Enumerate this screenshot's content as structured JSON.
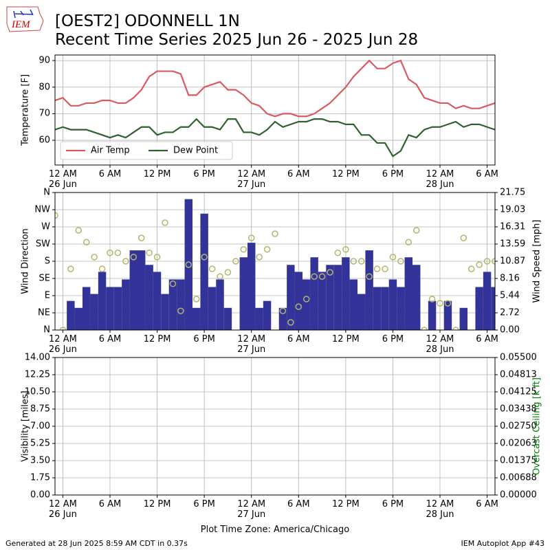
{
  "title": "[OEST2] ODONNELL 1N",
  "subtitle": "Recent Time Series 2025 Jun 26 - 2025 Jun 28",
  "logo": "IEM",
  "xlabel": "Plot Time Zone: America/Chicago",
  "footer_left": "Generated at 28 Jun 2025 8:59 AM CDT in 0.37s",
  "footer_right": "IEM Autoplot App #43",
  "chart_data": [
    {
      "type": "line",
      "ylabel": "Temperature [F]",
      "x": [
        -1,
        0,
        1,
        2,
        3,
        4,
        5,
        6,
        7,
        8,
        9,
        10,
        11,
        12,
        13,
        14,
        15,
        16,
        17,
        18,
        19,
        20,
        21,
        22,
        23,
        24,
        25,
        26,
        27,
        28,
        29,
        30,
        31,
        32,
        33,
        34,
        35,
        36,
        37,
        38,
        39,
        40,
        41,
        42,
        43,
        44,
        45,
        46,
        47,
        48,
        49,
        50,
        51,
        52,
        53,
        54,
        55
      ],
      "xlim": [
        -1,
        55
      ],
      "xticks": [
        {
          "value": 0,
          "label": "12 AM\n26 Jun"
        },
        {
          "value": 6,
          "label": "6 AM"
        },
        {
          "value": 12,
          "label": "12 PM"
        },
        {
          "value": 18,
          "label": "6 PM"
        },
        {
          "value": 24,
          "label": "12 AM\n27 Jun"
        },
        {
          "value": 30,
          "label": "6 AM"
        },
        {
          "value": 36,
          "label": "12 PM"
        },
        {
          "value": 42,
          "label": "6 PM"
        },
        {
          "value": 48,
          "label": "12 AM\n28 Jun"
        },
        {
          "value": 54,
          "label": "6 AM"
        }
      ],
      "ylim": [
        50.7,
        92.1
      ],
      "yticks": [
        60,
        70,
        80,
        90
      ],
      "grid": true,
      "legend": "lower left",
      "series": [
        {
          "name": "Air Temp",
          "color": "#d9595f",
          "values": [
            75,
            76,
            73,
            73,
            74,
            74,
            75,
            75,
            74,
            74,
            76,
            79,
            84,
            86,
            86,
            86,
            85,
            77,
            77,
            80,
            81,
            82,
            79,
            79,
            77,
            74,
            73,
            70,
            69,
            70,
            70,
            69,
            69,
            70,
            72,
            74,
            77,
            80,
            84,
            87,
            90,
            87,
            87,
            89,
            90,
            83,
            81,
            76,
            75,
            74,
            74,
            72,
            73,
            72,
            72,
            73,
            74
          ]
        },
        {
          "name": "Dew Point",
          "color": "#2f5f2f",
          "values": [
            64,
            65,
            64,
            64,
            64,
            63,
            62,
            61,
            62,
            61,
            63,
            65,
            65,
            62,
            63,
            63,
            65,
            65,
            68,
            65,
            65,
            64,
            68,
            68,
            63,
            63,
            62,
            64,
            67,
            65,
            66,
            67,
            67,
            68,
            68,
            67,
            67,
            66,
            66,
            62,
            62,
            59,
            59,
            54,
            56,
            62,
            61,
            64,
            65,
            65,
            66,
            67,
            65,
            66,
            66,
            65,
            64
          ]
        }
      ]
    },
    {
      "type": "combo",
      "ylabel": "Wind Direction",
      "y2label": "Wind Speed [mph]",
      "x": [
        -1,
        0,
        1,
        2,
        3,
        4,
        5,
        6,
        7,
        8,
        9,
        10,
        11,
        12,
        13,
        14,
        15,
        16,
        17,
        18,
        19,
        20,
        21,
        22,
        23,
        24,
        25,
        26,
        27,
        28,
        29,
        30,
        31,
        32,
        33,
        34,
        35,
        36,
        37,
        38,
        39,
        40,
        41,
        42,
        43,
        44,
        45,
        46,
        47,
        48,
        49,
        50,
        51,
        52,
        53,
        54,
        55
      ],
      "xlim": [
        -1,
        55
      ],
      "xticks": [
        {
          "value": 0,
          "label": "12 AM\n26 Jun"
        },
        {
          "value": 6,
          "label": "6 AM"
        },
        {
          "value": 12,
          "label": "12 PM"
        },
        {
          "value": 18,
          "label": "6 PM"
        },
        {
          "value": 24,
          "label": "12 AM\n27 Jun"
        },
        {
          "value": 30,
          "label": "6 AM"
        },
        {
          "value": 36,
          "label": "12 PM"
        },
        {
          "value": 42,
          "label": "6 PM"
        },
        {
          "value": 48,
          "label": "12 AM\n28 Jun"
        },
        {
          "value": 54,
          "label": "6 AM"
        }
      ],
      "ylim": [
        0,
        360
      ],
      "yticks": [
        {
          "value": 0,
          "label": "N"
        },
        {
          "value": 45,
          "label": "NE"
        },
        {
          "value": 90,
          "label": "E"
        },
        {
          "value": 135,
          "label": "SE"
        },
        {
          "value": 180,
          "label": "S"
        },
        {
          "value": 225,
          "label": "SW"
        },
        {
          "value": 270,
          "label": "W"
        },
        {
          "value": 315,
          "label": "NW"
        },
        {
          "value": 360,
          "label": "N"
        }
      ],
      "y2lim": [
        0,
        21.75
      ],
      "y2ticks": [
        {
          "value": 0,
          "label": "0.00"
        },
        {
          "value": 2.71875,
          "label": "2.72"
        },
        {
          "value": 5.4375,
          "label": "5.44"
        },
        {
          "value": 8.15625,
          "label": "8.16"
        },
        {
          "value": 10.875,
          "label": "10.87"
        },
        {
          "value": 13.59375,
          "label": "13.59"
        },
        {
          "value": 16.3125,
          "label": "16.31"
        },
        {
          "value": 19.03125,
          "label": "19.03"
        },
        {
          "value": 21.75,
          "label": "21.75"
        }
      ],
      "grid": true,
      "series": [
        {
          "type": "bar",
          "axis": "y2",
          "color": "#333399",
          "values": [
            0,
            0,
            4.6,
            3.5,
            6.8,
            5.7,
            9.2,
            6.8,
            6.8,
            8.0,
            12.6,
            12.6,
            10.3,
            9.2,
            5.7,
            8.0,
            8.0,
            20.7,
            3.5,
            18.4,
            6.8,
            8.0,
            3.5,
            0,
            11.5,
            13.8,
            3.5,
            4.6,
            0,
            3.5,
            10.3,
            9.2,
            8.0,
            11.5,
            9.2,
            10.3,
            10.3,
            11.5,
            8.0,
            5.7,
            12.6,
            6.8,
            6.8,
            8.0,
            6.8,
            11.5,
            10.3,
            0,
            4.6,
            0,
            4.6,
            0,
            3.5,
            0,
            6.8,
            9.2,
            6.8
          ]
        },
        {
          "type": "scatter",
          "color": "#b3b56c",
          "values": [
            300,
            0,
            160,
            261,
            230,
            191,
            160,
            202,
            202,
            180,
            191,
            241,
            202,
            191,
            281,
            121,
            50,
            171,
            81,
            191,
            160,
            140,
            151,
            180,
            211,
            241,
            191,
            211,
            252,
            50,
            20,
            61,
            81,
            140,
            140,
            151,
            202,
            211,
            180,
            180,
            140,
            160,
            160,
            191,
            180,
            230,
            261,
            0,
            81,
            70,
            70,
            0,
            241,
            160,
            171,
            180,
            180
          ]
        }
      ]
    },
    {
      "type": "line",
      "ylabel": "Visibility [miles]",
      "y2label": "Overcast Ceiling [k ft]",
      "y2label_color": "#008000",
      "xlim": [
        -1,
        55
      ],
      "xticks": [
        {
          "value": 0,
          "label": "12 AM\n26 Jun"
        },
        {
          "value": 6,
          "label": "6 AM"
        },
        {
          "value": 12,
          "label": "12 PM"
        },
        {
          "value": 18,
          "label": "6 PM"
        },
        {
          "value": 24,
          "label": "12 AM\n27 Jun"
        },
        {
          "value": 30,
          "label": "6 AM"
        },
        {
          "value": 36,
          "label": "12 PM"
        },
        {
          "value": 42,
          "label": "6 PM"
        },
        {
          "value": 48,
          "label": "12 AM\n28 Jun"
        },
        {
          "value": 54,
          "label": "6 AM"
        }
      ],
      "ylim": [
        0,
        14
      ],
      "yticks": [
        {
          "value": 0,
          "label": "0.00"
        },
        1.75,
        {
          "value": 3.5,
          "label": "3.50"
        },
        5.25,
        {
          "value": 7,
          "label": "7.00"
        },
        8.75,
        {
          "value": 10.5,
          "label": "10.50"
        },
        12.25,
        {
          "value": 14,
          "label": "14.00"
        }
      ],
      "y2lim": [
        0,
        0.055
      ],
      "y2ticks": [
        {
          "value": 0,
          "label": "0.00000"
        },
        {
          "value": 0.006875,
          "label": "0.00688"
        },
        0.01375,
        {
          "value": 0.020625,
          "label": "0.02063"
        },
        {
          "value": 0.0275,
          "label": "0.02750"
        },
        {
          "value": 0.034375,
          "label": "0.03438"
        },
        0.04125,
        {
          "value": 0.048125,
          "label": "0.04813"
        },
        {
          "value": 0.055,
          "label": "0.05500"
        }
      ],
      "grid": true,
      "series": []
    }
  ]
}
